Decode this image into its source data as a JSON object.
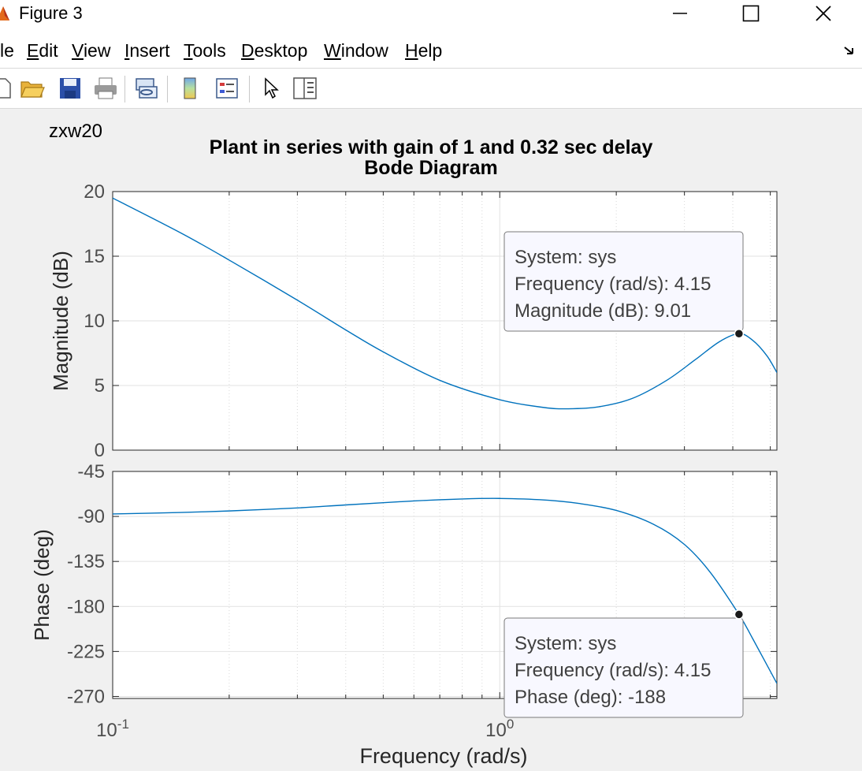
{
  "window": {
    "title": "Figure 3",
    "minimize_icon": "minimize-icon",
    "maximize_icon": "maximize-icon",
    "close_icon": "close-icon"
  },
  "menu": {
    "items": [
      {
        "label": "le",
        "underline": ""
      },
      {
        "label": "Edit",
        "underline": "E"
      },
      {
        "label": "View",
        "underline": "V"
      },
      {
        "label": "Insert",
        "underline": "I"
      },
      {
        "label": "Tools",
        "underline": "T"
      },
      {
        "label": "Desktop",
        "underline": "D"
      },
      {
        "label": "Window",
        "underline": "W"
      },
      {
        "label": "Help",
        "underline": "H"
      }
    ]
  },
  "toolbar": {
    "icons": [
      "new-figure-icon",
      "open-icon",
      "save-icon",
      "print-icon",
      "link-icon",
      "colorbar-icon",
      "legend-icon",
      "pointer-icon",
      "property-editor-icon"
    ]
  },
  "figure": {
    "label": "zxw20",
    "title_line1": "Plant in series with gain of 1 and 0.32 sec delay",
    "title_line2": "Bode Diagram",
    "xlabel": "Frequency  (rad/s)",
    "x_ticks": [
      {
        "base": "10",
        "exp": "-1"
      },
      {
        "base": "10",
        "exp": "0"
      }
    ]
  },
  "chart_data": [
    {
      "type": "line",
      "ylabel": "Magnitude (dB)",
      "xscale": "log",
      "xlim": [
        0.1,
        5.2
      ],
      "ylim": [
        0,
        20
      ],
      "yticks": [
        "0",
        "5",
        "10",
        "15",
        "20"
      ],
      "grid": true,
      "line_color": "#0072bd",
      "x": [
        0.1,
        0.15,
        0.2,
        0.3,
        0.4,
        0.5,
        0.7,
        1.0,
        1.3,
        1.5,
        1.8,
        2.2,
        2.7,
        3.2,
        3.7,
        4.15,
        4.5,
        4.9,
        5.2
      ],
      "values": [
        19.5,
        16.8,
        14.7,
        11.6,
        9.3,
        7.6,
        5.4,
        3.9,
        3.3,
        3.2,
        3.35,
        4.0,
        5.4,
        7.0,
        8.4,
        9.01,
        8.5,
        7.3,
        6.0
      ],
      "datatip": {
        "system": "System: sys",
        "frequency": "Frequency (rad/s): 4.15",
        "value": "Magnitude (dB): 9.01",
        "x": 4.15,
        "y": 9.01
      }
    },
    {
      "type": "line",
      "ylabel": "Phase (deg)",
      "xscale": "log",
      "xlim": [
        0.1,
        5.2
      ],
      "ylim": [
        -272,
        -45
      ],
      "yticks": [
        "-45",
        "-90",
        "-135",
        "-180",
        "-225",
        "-270"
      ],
      "grid": true,
      "line_color": "#0072bd",
      "x": [
        0.1,
        0.15,
        0.2,
        0.3,
        0.4,
        0.6,
        0.8,
        1.0,
        1.3,
        1.6,
        2.0,
        2.5,
        3.0,
        3.5,
        4.15,
        4.5,
        5.2
      ],
      "values": [
        -87.5,
        -86,
        -84.5,
        -81.5,
        -78.5,
        -74.5,
        -72.5,
        -72,
        -73.5,
        -77,
        -84,
        -98,
        -118,
        -146,
        -188,
        -212,
        -257
      ],
      "datatip": {
        "system": "System: sys",
        "frequency": "Frequency (rad/s): 4.15",
        "value": "Phase (deg): -188",
        "x": 4.15,
        "y": -188
      }
    }
  ]
}
